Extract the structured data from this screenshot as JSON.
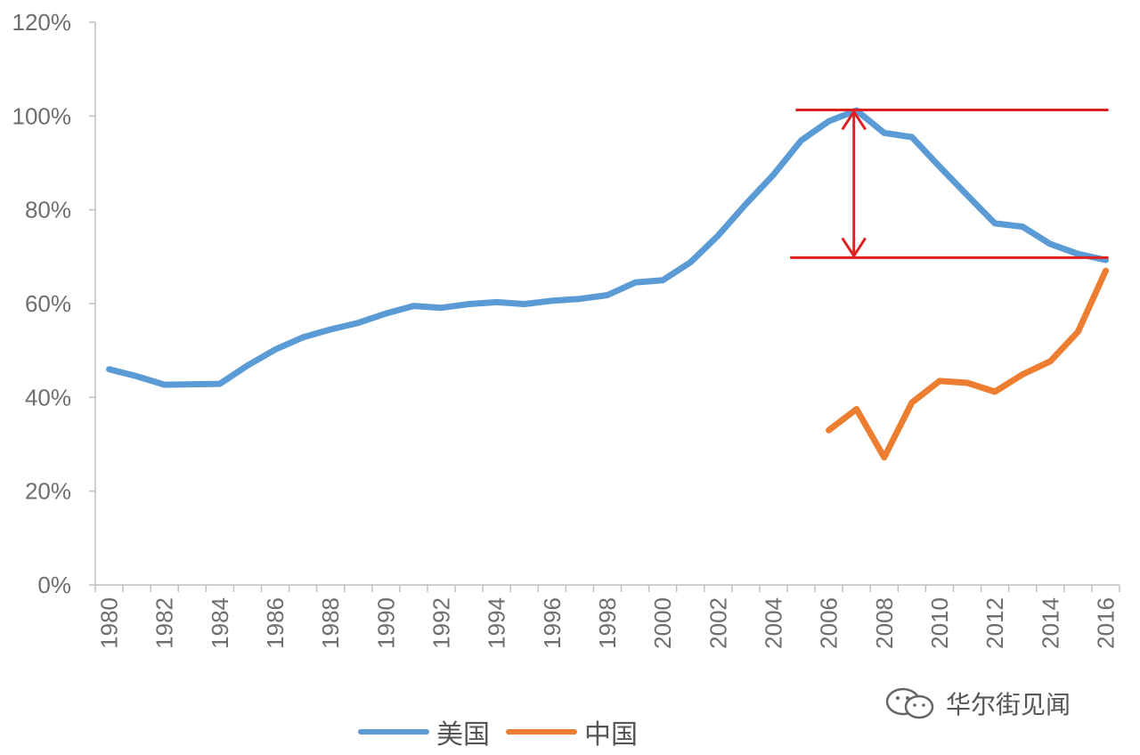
{
  "chart_data": {
    "type": "line",
    "y_ticks": [
      "0%",
      "20%",
      "40%",
      "60%",
      "80%",
      "100%",
      "120%"
    ],
    "ylim": [
      0,
      120
    ],
    "x_ticks": [
      "1980",
      "1982",
      "1984",
      "1986",
      "1988",
      "1990",
      "1992",
      "1994",
      "1996",
      "1998",
      "2000",
      "2002",
      "2004",
      "2006",
      "2008",
      "2010",
      "2012",
      "2014",
      "2016"
    ],
    "xlim": [
      1980,
      2016
    ],
    "series": [
      {
        "name": "美国",
        "color": "#5b9bd5",
        "x": [
          1980,
          1981,
          1982,
          1983,
          1984,
          1985,
          1986,
          1987,
          1988,
          1989,
          1990,
          1991,
          1992,
          1993,
          1994,
          1995,
          1996,
          1997,
          1998,
          1999,
          2000,
          2001,
          2002,
          2003,
          2004,
          2005,
          2006,
          2007,
          2008,
          2009,
          2010,
          2011,
          2012,
          2013,
          2014,
          2015,
          2016
        ],
        "values": [
          46,
          44.5,
          42.7,
          42.8,
          42.9,
          46.8,
          50.2,
          52.8,
          54.5,
          55.9,
          57.9,
          59.5,
          59.1,
          59.9,
          60.3,
          59.9,
          60.6,
          61.0,
          61.8,
          64.5,
          65.0,
          68.8,
          74.5,
          81.2,
          87.5,
          94.8,
          98.9,
          101.2,
          96.4,
          95.5,
          89.2,
          83.1,
          77.1,
          76.4,
          72.7,
          70.6,
          69.3
        ]
      },
      {
        "name": "中国",
        "color": "#ed7d31",
        "x": [
          2006,
          2007,
          2008,
          2009,
          2010,
          2011,
          2012,
          2013,
          2014,
          2015,
          2016
        ],
        "values": [
          33.0,
          37.5,
          27.2,
          38.9,
          43.5,
          43.1,
          41.2,
          44.9,
          47.7,
          54.0,
          67.0
        ]
      }
    ],
    "annotations": {
      "color": "#e02020",
      "upper_line_value": 101.3,
      "lower_line_value": 69.8,
      "arrow_x": 2007,
      "upper_line_x": [
        2004.8,
        2016.1
      ],
      "lower_line_x": [
        2004.6,
        2016.1
      ]
    },
    "legend": {
      "placement": "bottom-center"
    },
    "grid": false
  },
  "watermark": {
    "text": "华尔街见闻"
  }
}
